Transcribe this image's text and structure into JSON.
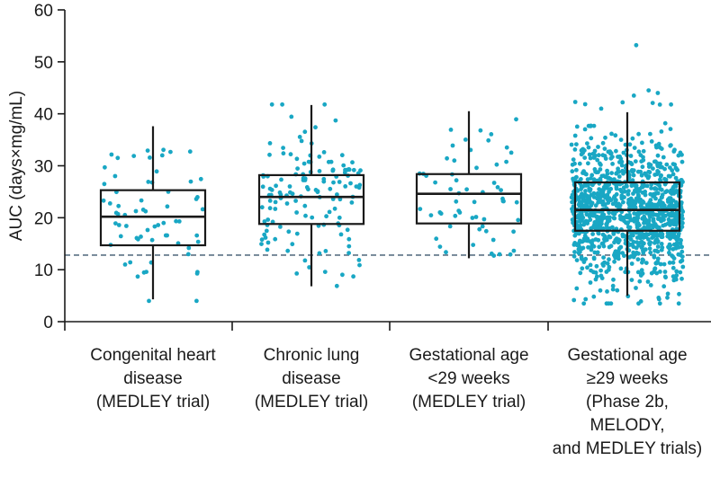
{
  "chart_data": {
    "type": "box",
    "title": "",
    "ylabel": "AUC (days×mg/mL)",
    "xlabel": "",
    "ylim": [
      0,
      60
    ],
    "yticks": [
      0,
      10,
      20,
      30,
      40,
      50,
      60
    ],
    "reference_line": {
      "y": 12.8,
      "style": "dashed"
    },
    "colors": {
      "points": "#19a7c4",
      "box": "#1a1a1a",
      "reference": "#5a7184"
    },
    "groups": [
      {
        "label_lines": [
          "Congenital heart",
          "disease",
          "(MEDLEY trial)"
        ],
        "min": 4.3,
        "q1": 14.7,
        "median": 20.2,
        "q3": 25.3,
        "max": 37.6,
        "n_points": 65,
        "point_range": [
          4.0,
          37.8
        ],
        "outliers": [
          4.0
        ]
      },
      {
        "label_lines": [
          "Chronic lung",
          "disease",
          "(MEDLEY trial)"
        ],
        "min": 6.8,
        "q1": 18.8,
        "median": 24.0,
        "q3": 28.2,
        "max": 41.7,
        "n_points": 140,
        "point_range": [
          6.5,
          41.8
        ],
        "outliers": []
      },
      {
        "label_lines": [
          "Gestational age",
          "<29 weeks",
          "(MEDLEY trial)"
        ],
        "min": 12.2,
        "q1": 18.9,
        "median": 24.6,
        "q3": 28.4,
        "max": 40.5,
        "n_points": 60,
        "point_range": [
          12.0,
          40.7
        ],
        "outliers": []
      },
      {
        "label_lines": [
          "Gestational age",
          "≥29 weeks",
          "(Phase 2b,",
          "MELODY,",
          "and MEDLEY trials)"
        ],
        "min": 5.0,
        "q1": 17.5,
        "median": 21.5,
        "q3": 26.8,
        "max": 40.3,
        "n_points": 1150,
        "point_range": [
          3.5,
          53.2
        ],
        "outliers": [
          53.2,
          44.5,
          44.0,
          43.5,
          42.2,
          41.8,
          41.0,
          3.5,
          4.6,
          6.0,
          6.2
        ]
      }
    ]
  }
}
